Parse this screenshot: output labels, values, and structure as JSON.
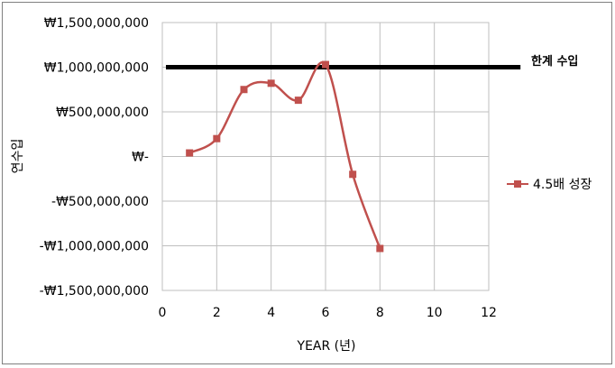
{
  "chart_data": {
    "type": "scatter",
    "xlabel": "YEAR (년)",
    "ylabel": "연수입",
    "xlim": [
      0,
      12
    ],
    "ylim": [
      -1500000000,
      1500000000
    ],
    "x_ticks": [
      0,
      2,
      4,
      6,
      8,
      10,
      12
    ],
    "x_tick_labels": [
      "0",
      "2",
      "4",
      "6",
      "8",
      "10",
      "12"
    ],
    "y_ticks": [
      1500000000,
      1000000000,
      500000000,
      0,
      -500000000,
      -1000000000,
      -1500000000
    ],
    "y_tick_labels": [
      "₩1,500,000,000",
      "₩1,000,000,000",
      "₩500,000,000",
      "₩-",
      "-₩500,000,000",
      "-₩1,000,000,000",
      "-₩1,500,000,000"
    ],
    "grid": true,
    "smooth": true,
    "series": [
      {
        "name": "4.5배 성장",
        "color": "#c0504d",
        "marker": "square",
        "x": [
          1,
          2,
          3,
          4,
          5,
          6,
          7,
          8
        ],
        "y": [
          40000000,
          200000000,
          750000000,
          820000000,
          630000000,
          1030000000,
          -200000000,
          -1030000000
        ]
      }
    ],
    "reference_line": {
      "label": "한계 수입",
      "value": 1000000000,
      "x_range": [
        0,
        13
      ],
      "color": "#000000"
    },
    "legend": {
      "position": "right"
    }
  }
}
